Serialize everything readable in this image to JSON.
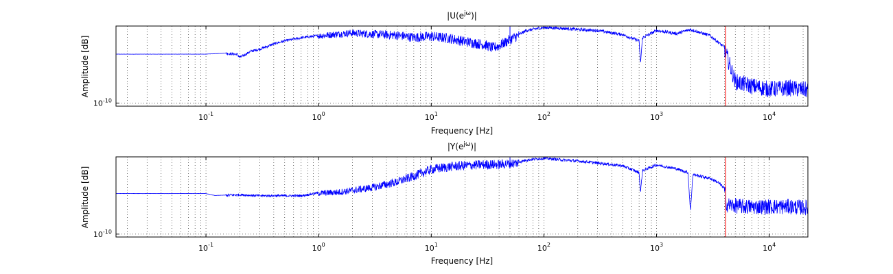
{
  "chart_data": [
    {
      "type": "line",
      "title": "|U(e",
      "title_sup": "jω",
      "title_suffix": ")|",
      "xlabel": "Frequency [Hz]",
      "ylabel": "Amplitude [dB]",
      "x_scale": "log",
      "y_scale": "log",
      "xlim": [
        0.0159,
        22050
      ],
      "grid": true,
      "x_ticks": [
        {
          "base": "10",
          "exp": "-1",
          "value": 0.1
        },
        {
          "base": "10",
          "exp": "0",
          "value": 1
        },
        {
          "base": "10",
          "exp": "1",
          "value": 10
        },
        {
          "base": "10",
          "exp": "2",
          "value": 100
        },
        {
          "base": "10",
          "exp": "3",
          "value": 1000
        },
        {
          "base": "10",
          "exp": "4",
          "value": 10000
        }
      ],
      "y_ticks": [
        {
          "base": "10",
          "exp": "-10",
          "value": 1e-10
        }
      ],
      "cutoff_line": {
        "x": 4100,
        "color": "#ff0000"
      },
      "series": [
        {
          "color": "#0000ff",
          "x": [
            0.0159,
            0.05,
            0.1,
            0.15,
            0.19,
            0.2,
            0.25,
            0.3,
            0.4,
            0.5,
            0.7,
            1,
            1.5,
            2,
            3,
            5,
            7,
            10,
            15,
            20,
            30,
            35,
            40,
            50,
            60,
            70,
            100,
            150,
            200,
            300,
            500,
            700,
            720,
            750,
            1000,
            1500,
            2000,
            3000,
            3500,
            4000,
            5000,
            7000,
            10000,
            15000,
            22050
          ],
          "y": [
            -5.3,
            -5.3,
            -5.3,
            -5.2,
            -5.3,
            -5.6,
            -5.0,
            -4.8,
            -4.3,
            -4.0,
            -3.7,
            -3.5,
            -3.3,
            -3.2,
            -3.3,
            -3.4,
            -3.6,
            -3.5,
            -3.7,
            -4.0,
            -4.3,
            -4.6,
            -4.4,
            -3.8,
            -3.4,
            -3.0,
            -2.7,
            -2.8,
            -2.9,
            -3.0,
            -3.4,
            -4.0,
            -6.2,
            -3.7,
            -3.0,
            -3.3,
            -2.9,
            -3.5,
            -4.1,
            -4.6,
            -7.8,
            -8.2,
            -8.5,
            -8.4,
            -8.6
          ]
        }
      ]
    },
    {
      "type": "line",
      "title": "|Y(e",
      "title_sup": "jω",
      "title_suffix": ")|",
      "xlabel": "Frequency [Hz]",
      "ylabel": "Amplitude [dB]",
      "x_scale": "log",
      "y_scale": "log",
      "xlim": [
        0.0159,
        22050
      ],
      "grid": true,
      "x_ticks": [
        {
          "base": "10",
          "exp": "-1",
          "value": 0.1
        },
        {
          "base": "10",
          "exp": "0",
          "value": 1
        },
        {
          "base": "10",
          "exp": "1",
          "value": 10
        },
        {
          "base": "10",
          "exp": "2",
          "value": 100
        },
        {
          "base": "10",
          "exp": "3",
          "value": 1000
        },
        {
          "base": "10",
          "exp": "4",
          "value": 10000
        }
      ],
      "y_ticks": [
        {
          "base": "10",
          "exp": "-10",
          "value": 1e-10
        }
      ],
      "cutoff_line": {
        "x": 4100,
        "color": "#ff0000"
      },
      "series": [
        {
          "color": "#0000ff",
          "x": [
            0.0159,
            0.05,
            0.1,
            0.12,
            0.2,
            0.3,
            0.5,
            0.7,
            1,
            1.5,
            2,
            3,
            5,
            7,
            10,
            15,
            20,
            30,
            40,
            50,
            60,
            70,
            100,
            150,
            200,
            300,
            500,
            700,
            720,
            750,
            1000,
            1500,
            1900,
            2000,
            2100,
            3000,
            3500,
            4000,
            4200,
            6000,
            10000,
            15000,
            22050
          ],
          "y": [
            -5.8,
            -5.8,
            -5.8,
            -6.0,
            -5.9,
            -6.0,
            -6.0,
            -6.0,
            -5.7,
            -5.6,
            -5.4,
            -5.1,
            -4.5,
            -3.9,
            -3.2,
            -2.9,
            -2.8,
            -2.7,
            -2.7,
            -2.6,
            -2.5,
            -2.3,
            -2.1,
            -2.3,
            -2.4,
            -2.6,
            -2.9,
            -3.6,
            -5.7,
            -3.4,
            -2.8,
            -3.2,
            -3.6,
            -7.6,
            -3.8,
            -4.2,
            -4.6,
            -5.2,
            -6.8,
            -7.0,
            -7.0,
            -7.0,
            -7.1
          ]
        }
      ]
    }
  ]
}
